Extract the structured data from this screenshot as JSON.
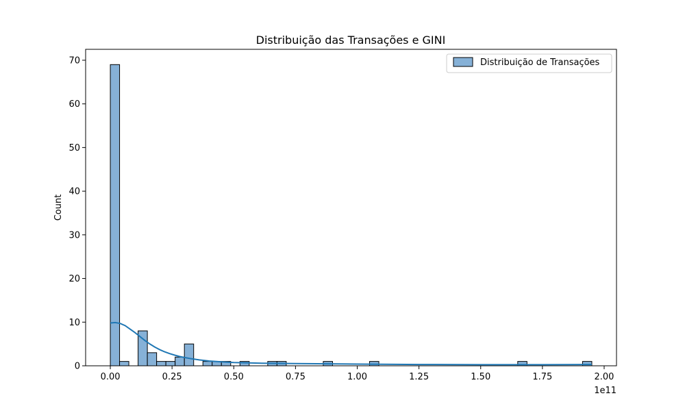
{
  "chart_data": {
    "type": "bar",
    "title": "Distribuição das Transações e GINI",
    "xlabel": "",
    "ylabel": "Count",
    "x_offset_label": "1e11",
    "xlim": [
      -0.1,
      2.05
    ],
    "ylim": [
      0,
      72.5
    ],
    "x_ticks": [
      0.0,
      0.25,
      0.5,
      0.75,
      1.0,
      1.25,
      1.5,
      1.75,
      2.0
    ],
    "x_tick_labels": [
      "0.00",
      "0.25",
      "0.50",
      "0.75",
      "1.00",
      "1.25",
      "1.50",
      "1.75",
      "2.00"
    ],
    "y_ticks": [
      0,
      10,
      20,
      30,
      40,
      50,
      60,
      70
    ],
    "y_tick_labels": [
      "0",
      "10",
      "20",
      "30",
      "40",
      "50",
      "60",
      "70"
    ],
    "bin_width": 0.0375,
    "bin_start": 0.0,
    "counts": [
      69,
      1,
      0,
      8,
      3,
      1,
      1,
      2,
      5,
      0,
      1,
      1,
      1,
      0,
      1,
      0,
      0,
      1,
      1,
      0,
      0,
      0,
      0,
      1,
      0,
      0,
      0,
      0,
      1,
      0,
      0,
      0,
      0,
      0,
      0,
      0,
      0,
      0,
      0,
      0,
      0,
      0,
      0,
      0,
      1,
      0,
      0,
      0,
      0,
      0,
      0,
      1
    ],
    "kde": {
      "x": [
        0.0,
        0.02,
        0.04,
        0.06,
        0.08,
        0.1,
        0.12,
        0.14,
        0.16,
        0.18,
        0.2,
        0.22,
        0.24,
        0.26,
        0.28,
        0.3,
        0.33,
        0.36,
        0.4,
        0.45,
        0.5,
        0.6,
        0.75,
        1.0,
        1.25,
        1.5,
        1.75,
        1.95
      ],
      "y": [
        9.8,
        9.9,
        9.7,
        9.2,
        8.4,
        7.6,
        6.7,
        5.8,
        5.0,
        4.3,
        3.7,
        3.2,
        2.8,
        2.45,
        2.15,
        1.9,
        1.6,
        1.35,
        1.1,
        0.9,
        0.75,
        0.6,
        0.5,
        0.4,
        0.3,
        0.25,
        0.25,
        0.3
      ]
    },
    "series": [
      {
        "name": "Distribuição de Transações"
      }
    ],
    "legend_position": "top-right",
    "grid": false,
    "colors": {
      "bar_fill": "#86b1d7",
      "bar_edge": "#000000",
      "kde_line": "#1f77b4"
    }
  }
}
